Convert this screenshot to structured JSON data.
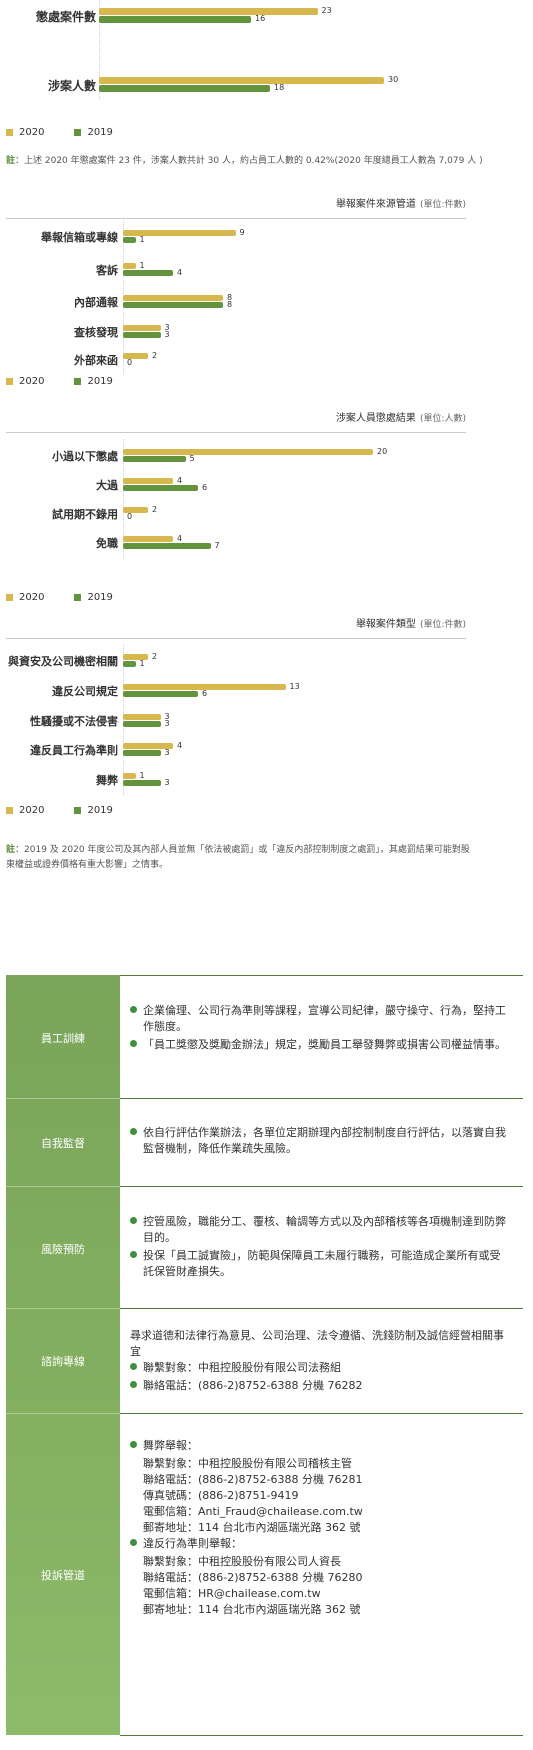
{
  "colors": {
    "y2020": "#d7b84e",
    "y2019": "#63933c",
    "accent": "#5b8c35"
  },
  "legend": {
    "y2020": "2020",
    "y2019": "2019"
  },
  "chart_data": [
    {
      "type": "bar",
      "orientation": "horizontal",
      "title": "",
      "categories": [
        "懲處案件數",
        "涉案人數"
      ],
      "series": [
        {
          "name": "2020",
          "values": [
            23,
            30
          ]
        },
        {
          "name": "2019",
          "values": [
            16,
            18
          ]
        }
      ],
      "xlim": [
        0,
        30
      ]
    },
    {
      "type": "bar",
      "orientation": "horizontal",
      "title": "舉報案件來源管道",
      "unit": "(單位:件數)",
      "categories": [
        "舉報信箱或專線",
        "客訴",
        "內部通報",
        "查核發現",
        "外部來函"
      ],
      "series": [
        {
          "name": "2020",
          "values": [
            9,
            1,
            8,
            3,
            2
          ]
        },
        {
          "name": "2019",
          "values": [
            1,
            4,
            8,
            3,
            0
          ]
        }
      ],
      "xlim": [
        0,
        20
      ]
    },
    {
      "type": "bar",
      "orientation": "horizontal",
      "title": "涉案人員懲處結果",
      "unit": "(單位:人數)",
      "categories": [
        "小過以下懲處",
        "大過",
        "試用期不錄用",
        "免職"
      ],
      "series": [
        {
          "name": "2020",
          "values": [
            20,
            4,
            2,
            4
          ]
        },
        {
          "name": "2019",
          "values": [
            5,
            6,
            0,
            7
          ]
        }
      ],
      "xlim": [
        0,
        20
      ]
    },
    {
      "type": "bar",
      "orientation": "horizontal",
      "title": "舉報案件類型",
      "unit": "(單位:件數)",
      "categories": [
        "與資安及公司機密相關",
        "違反公司規定",
        "性騷擾或不法侵害",
        "違反員工行為準則",
        "舞弊"
      ],
      "series": [
        {
          "name": "2020",
          "values": [
            2,
            13,
            3,
            4,
            1
          ]
        },
        {
          "name": "2019",
          "values": [
            1,
            6,
            3,
            3,
            3
          ]
        }
      ],
      "xlim": [
        0,
        20
      ]
    }
  ],
  "notes": {
    "mark": "註",
    "note1": "：上述 2020 年懲處案件 23 件，涉案人數共計 30 人，約占員工人數的 0.42%(2020 年度總員工人數為 7,079 人 )",
    "note2": "：2019 及 2020 年度公司及其內部人員並無「依法被處罰」或「違反內部控制制度之處罰」，其處罰結果可能對股東權益或證券價格有重大影響」之情事。"
  },
  "table": {
    "rows": [
      {
        "label": "員工訓練",
        "items": [
          "企業倫理、公司行為準則等課程，宣導公司紀律，嚴守操守、行為，堅持工作態度。",
          "「員工獎懲及獎勵金辦法」規定，獎勵員工舉發舞弊或損害公司權益情事。"
        ]
      },
      {
        "label": "自我監督",
        "items": [
          "依自行評估作業辦法，各單位定期辦理內部控制制度自行評估，以落實自我監督機制，降低作業疏失風險。"
        ]
      },
      {
        "label": "風險預防",
        "items": [
          "控管風險，職能分工、覆核、輪調等方式以及內部稽核等各項機制達到防弊目的。",
          "投保「員工誠實險」，防範與保障員工未履行職務，可能造成企業所有或受託保管財產損失。"
        ]
      },
      {
        "label": "諮詢專線",
        "intro": "尋求道德和法律行為意見、公司治理、法令遵循、洗錢防制及誠信經營相關事宜",
        "items": [
          "聯繫對象：中租控股股份有限公司法務組",
          "聯絡電話：(886-2)8752-6388 分機 76282"
        ]
      },
      {
        "label": "投訴管道",
        "groups": [
          {
            "head": "舞弊舉報：",
            "lines": [
              "聯繫對象：中租控股股份有限公司稽核主管",
              "聯絡電話：(886-2)8752-6388 分機 76281",
              "傳真號碼：(886-2)8751-9419",
              "電郵信箱：Anti_Fraud@chailease.com.tw",
              "郵寄地址：114 台北市內湖區瑞光路 362 號"
            ]
          },
          {
            "head": "違反行為準則舉報：",
            "lines": [
              "聯繫對象：中租控股股份有限公司人資長",
              "聯絡電話：(886-2)8752-6388 分機 76280",
              "電郵信箱：HR@chailease.com.tw",
              "郵寄地址：114 台北市內湖區瑞光路 362 號"
            ]
          }
        ]
      }
    ]
  }
}
